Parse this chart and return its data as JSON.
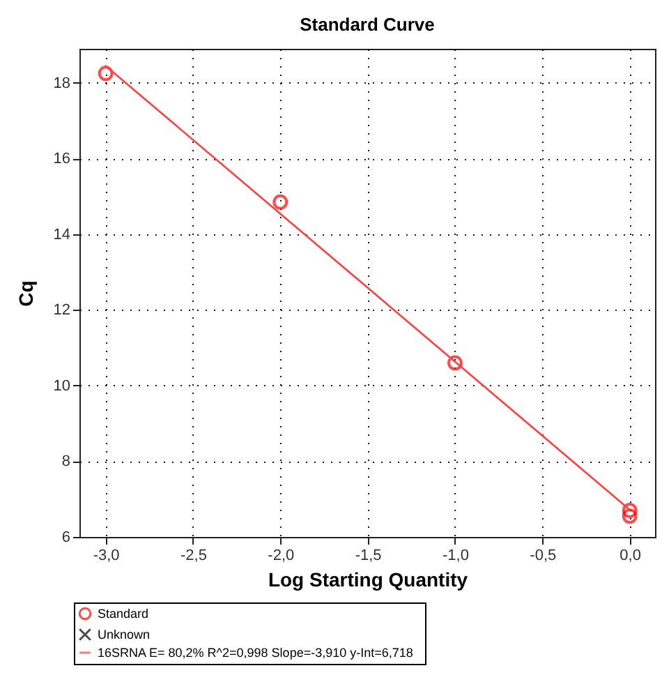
{
  "chart_data": {
    "type": "scatter",
    "title": "Standard Curve",
    "xlabel": "Log Starting Quantity",
    "ylabel": "Cq",
    "xlim": [
      -3.15,
      0.145
    ],
    "ylim": [
      6,
      18.9
    ],
    "xticks": [
      {
        "value": -3,
        "label": "-3,0"
      },
      {
        "value": -2.5,
        "label": "-2,5"
      },
      {
        "value": -2,
        "label": "-2,0"
      },
      {
        "value": -1.5,
        "label": "-1,5"
      },
      {
        "value": -1,
        "label": "-1,0"
      },
      {
        "value": -0.5,
        "label": "-0,5"
      },
      {
        "value": 0,
        "label": "0,0"
      }
    ],
    "yticks": [
      6,
      8,
      10,
      12,
      14,
      16,
      18
    ],
    "grid": true,
    "legend": "bottom",
    "series": [
      {
        "name": "Standard",
        "marker": "circle",
        "color": "#ff0000",
        "x": [
          -3,
          -2,
          -1,
          0,
          0
        ],
        "values": [
          18.25,
          14.85,
          10.6,
          6.7,
          6.55
        ]
      },
      {
        "name": "Unknown",
        "marker": "cross",
        "color": "#000000"
      },
      {
        "name": "16SRNA   E= 80,2% R^2=0,998 Slope=-3,910 y-Int=6,718",
        "type": "line",
        "line_style": "solid",
        "color": "#ff4040",
        "x": [
          -3,
          0
        ],
        "values": [
          18.45,
          6.72
        ]
      }
    ]
  }
}
